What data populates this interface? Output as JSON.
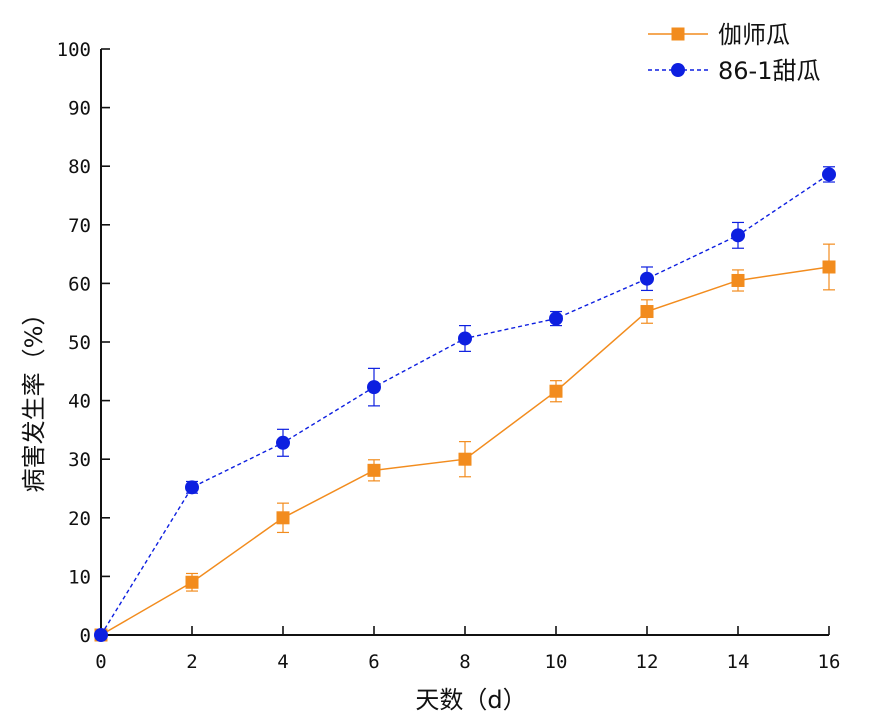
{
  "chart_data": {
    "type": "line",
    "title": "",
    "xlabel": "天数（d）",
    "ylabel": "病害发生率（%）",
    "x": [
      0,
      2,
      4,
      6,
      8,
      10,
      12,
      14,
      16
    ],
    "xticks": [
      0,
      2,
      4,
      6,
      8,
      10,
      12,
      14,
      16
    ],
    "yticks": [
      0,
      10,
      20,
      30,
      40,
      50,
      60,
      70,
      80,
      90,
      100
    ],
    "xlim": [
      0,
      16
    ],
    "ylim": [
      0,
      100
    ],
    "grid": false,
    "legend_position": "top-right",
    "series": [
      {
        "name": "伽师瓜",
        "color": "#f28c1e",
        "marker": "square",
        "line_style": "solid",
        "values": [
          0,
          9.0,
          20.0,
          28.1,
          30.0,
          41.6,
          55.2,
          60.5,
          62.8
        ],
        "errors": [
          0,
          1.5,
          2.5,
          1.8,
          3.0,
          1.8,
          2.0,
          1.8,
          3.9
        ]
      },
      {
        "name": "86-1甜瓜",
        "color": "#0d1fe0",
        "marker": "circle",
        "line_style": "dashed",
        "values": [
          0,
          25.2,
          32.8,
          42.3,
          50.6,
          54.0,
          60.8,
          68.2,
          78.6
        ],
        "errors": [
          0,
          1.0,
          2.3,
          3.2,
          2.2,
          1.2,
          2.0,
          2.2,
          1.3
        ]
      }
    ]
  }
}
